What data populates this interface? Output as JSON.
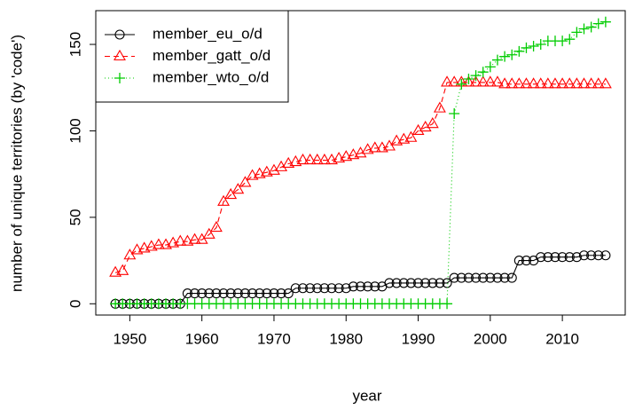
{
  "chart_data": {
    "type": "line",
    "xlabel": "year",
    "ylabel": "number of unique territories (by 'code')",
    "x": [
      1948,
      1949,
      1950,
      1951,
      1952,
      1953,
      1954,
      1955,
      1956,
      1957,
      1958,
      1959,
      1960,
      1961,
      1962,
      1963,
      1964,
      1965,
      1966,
      1967,
      1968,
      1969,
      1970,
      1971,
      1972,
      1973,
      1974,
      1975,
      1976,
      1977,
      1978,
      1979,
      1980,
      1981,
      1982,
      1983,
      1984,
      1985,
      1986,
      1987,
      1988,
      1989,
      1990,
      1991,
      1992,
      1993,
      1994,
      1995,
      1996,
      1997,
      1998,
      1999,
      2000,
      2001,
      2002,
      2003,
      2004,
      2005,
      2006,
      2007,
      2008,
      2009,
      2010,
      2011,
      2012,
      2013,
      2014,
      2015,
      2016
    ],
    "series": [
      {
        "name": "member_eu_o/d",
        "color": "#000000",
        "linestyle": "solid",
        "marker": "circle",
        "values": [
          0,
          0,
          0,
          0,
          0,
          0,
          0,
          0,
          0,
          0,
          6,
          6,
          6,
          6,
          6,
          6,
          6,
          6,
          6,
          6,
          6,
          6,
          6,
          6,
          6,
          9,
          9,
          9,
          9,
          9,
          9,
          9,
          9,
          10,
          10,
          10,
          10,
          10,
          12,
          12,
          12,
          12,
          12,
          12,
          12,
          12,
          12,
          15,
          15,
          15,
          15,
          15,
          15,
          15,
          15,
          15,
          25,
          25,
          25,
          27,
          27,
          27,
          27,
          27,
          27,
          28,
          28,
          28,
          28
        ]
      },
      {
        "name": "member_gatt_o/d",
        "color": "#ff0000",
        "linestyle": "dashed",
        "marker": "triangle",
        "values": [
          18,
          19,
          28,
          31,
          32,
          33,
          34,
          34,
          35,
          36,
          36,
          37,
          37,
          40,
          44,
          59,
          63,
          66,
          70,
          74,
          75,
          76,
          77,
          79,
          81,
          82,
          83,
          83,
          83,
          83,
          83,
          84,
          85,
          86,
          87,
          89,
          90,
          90,
          91,
          94,
          95,
          96,
          100,
          102,
          104,
          113,
          128,
          128,
          128,
          128,
          128,
          128,
          128,
          128,
          127,
          127,
          127,
          127,
          127,
          127,
          127,
          127,
          127,
          127,
          127,
          127,
          127,
          127,
          127
        ]
      },
      {
        "name": "member_wto_o/d",
        "color": "#00cc00",
        "linestyle": "dotted",
        "marker": "plus",
        "values": [
          0,
          0,
          0,
          0,
          0,
          0,
          0,
          0,
          0,
          0,
          0,
          0,
          0,
          0,
          0,
          0,
          0,
          0,
          0,
          0,
          0,
          0,
          0,
          0,
          0,
          0,
          0,
          0,
          0,
          0,
          0,
          0,
          0,
          0,
          0,
          0,
          0,
          0,
          0,
          0,
          0,
          0,
          0,
          0,
          0,
          0,
          0,
          110,
          127,
          130,
          132,
          134,
          137,
          141,
          143,
          144,
          146,
          148,
          149,
          150,
          152,
          152,
          152,
          153,
          157,
          159,
          160,
          162,
          163
        ]
      }
    ],
    "xlim": [
      1945.28,
      2018.72
    ],
    "xticks": [
      1950,
      1960,
      1970,
      1980,
      1990,
      2000,
      2010
    ],
    "ylim": [
      -6.52,
      169.52
    ],
    "yticks": [
      0,
      50,
      100,
      150
    ],
    "legend": "topleft"
  }
}
